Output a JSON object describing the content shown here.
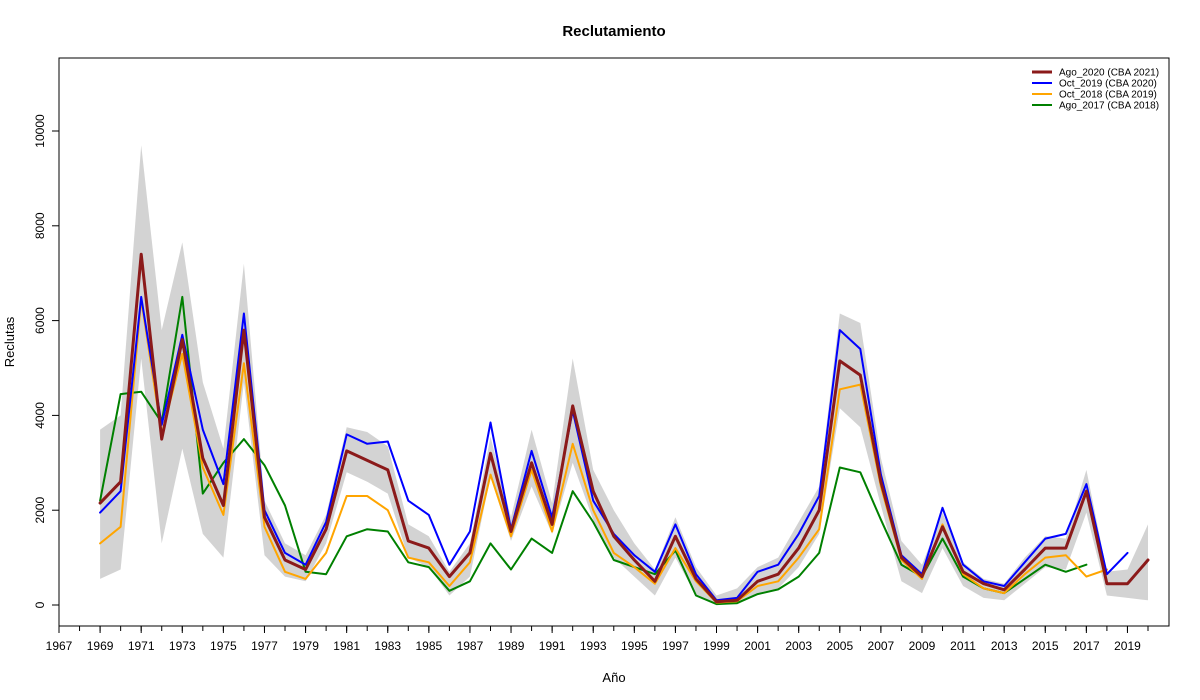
{
  "chart_data": {
    "type": "line",
    "title": "Reclutamiento",
    "xlabel": "Año",
    "ylabel": "Reclutas",
    "xlim": [
      1967,
      2020
    ],
    "ylim": [
      0,
      11000
    ],
    "xticks": [
      1967,
      1969,
      1971,
      1973,
      1975,
      1977,
      1979,
      1981,
      1983,
      1985,
      1987,
      1989,
      1991,
      1993,
      1995,
      1997,
      1999,
      2001,
      2003,
      2005,
      2007,
      2009,
      2011,
      2013,
      2015,
      2017,
      2019
    ],
    "yticks": [
      0,
      2000,
      4000,
      6000,
      8000,
      10000
    ],
    "legend_position": "top-right",
    "band": {
      "color": "#d3d3d3",
      "x": [
        1969,
        1970,
        1971,
        1972,
        1973,
        1974,
        1975,
        1976,
        1977,
        1978,
        1979,
        1980,
        1981,
        1982,
        1983,
        1984,
        1985,
        1986,
        1987,
        1988,
        1989,
        1990,
        1991,
        1992,
        1993,
        1994,
        1995,
        1996,
        1997,
        1998,
        1999,
        2000,
        2001,
        2002,
        2003,
        2004,
        2005,
        2006,
        2007,
        2008,
        2009,
        2010,
        2011,
        2012,
        2013,
        2014,
        2015,
        2016,
        2017,
        2018,
        2019,
        2020
      ],
      "upper": [
        3700,
        4000,
        9700,
        5800,
        7650,
        4700,
        3300,
        7200,
        2200,
        1300,
        1050,
        1900,
        3750,
        3650,
        3350,
        1700,
        1450,
        700,
        1300,
        3550,
        1850,
        3700,
        2150,
        5200,
        2850,
        2000,
        1300,
        750,
        1850,
        800,
        200,
        350,
        800,
        1000,
        1750,
        2500,
        6150,
        5950,
        3100,
        1350,
        850,
        1950,
        900,
        550,
        450,
        1000,
        1450,
        1400,
        2850,
        700,
        750,
        1700
      ],
      "lower": [
        550,
        750,
        5200,
        1300,
        3300,
        1500,
        1000,
        4700,
        1050,
        600,
        500,
        1300,
        2800,
        2600,
        2350,
        1000,
        800,
        200,
        600,
        2700,
        1350,
        2500,
        1500,
        3000,
        1800,
        1000,
        600,
        200,
        1000,
        200,
        10,
        10,
        250,
        350,
        800,
        1500,
        4150,
        3750,
        2100,
        500,
        250,
        1200,
        400,
        150,
        100,
        450,
        800,
        750,
        1950,
        200,
        150,
        100
      ]
    },
    "series": [
      {
        "name": "Ago_2020 (CBA 2021)",
        "color": "#8b1a1a",
        "width": 3,
        "x": [
          1969,
          1970,
          1971,
          1972,
          1973,
          1974,
          1975,
          1976,
          1977,
          1978,
          1979,
          1980,
          1981,
          1982,
          1983,
          1984,
          1985,
          1986,
          1987,
          1988,
          1989,
          1990,
          1991,
          1992,
          1993,
          1994,
          1995,
          1996,
          1997,
          1998,
          1999,
          2000,
          2001,
          2002,
          2003,
          2004,
          2005,
          2006,
          2007,
          2008,
          2009,
          2010,
          2011,
          2012,
          2013,
          2014,
          2015,
          2016,
          2017,
          2018,
          2019,
          2020
        ],
        "values": [
          2150,
          2600,
          7400,
          3500,
          5600,
          3100,
          2100,
          5800,
          1850,
          950,
          750,
          1600,
          3250,
          3050,
          2850,
          1350,
          1200,
          600,
          1100,
          3200,
          1550,
          3000,
          1700,
          4200,
          2400,
          1450,
          950,
          500,
          1450,
          550,
          70,
          100,
          500,
          650,
          1200,
          2000,
          5150,
          4850,
          2600,
          1000,
          600,
          1650,
          700,
          450,
          320,
          750,
          1200,
          1200,
          2400,
          450,
          450,
          950
        ]
      },
      {
        "name": "Oct_2019 (CBA 2020)",
        "color": "#0000ff",
        "width": 2,
        "x": [
          1969,
          1970,
          1971,
          1972,
          1973,
          1974,
          1975,
          1976,
          1977,
          1978,
          1979,
          1980,
          1981,
          1982,
          1983,
          1984,
          1985,
          1986,
          1987,
          1988,
          1989,
          1990,
          1991,
          1992,
          1993,
          1994,
          1995,
          1996,
          1997,
          1998,
          1999,
          2000,
          2001,
          2002,
          2003,
          2004,
          2005,
          2006,
          2007,
          2008,
          2009,
          2010,
          2011,
          2012,
          2013,
          2014,
          2015,
          2016,
          2017,
          2018,
          2019
        ],
        "values": [
          1950,
          2400,
          6500,
          3800,
          5700,
          3700,
          2550,
          6150,
          2000,
          1100,
          850,
          1750,
          3600,
          3400,
          3450,
          2200,
          1900,
          850,
          1550,
          3850,
          1600,
          3250,
          1850,
          4100,
          2200,
          1500,
          1050,
          700,
          1700,
          650,
          100,
          150,
          700,
          850,
          1500,
          2300,
          5800,
          5400,
          2750,
          1050,
          650,
          2050,
          850,
          500,
          400,
          900,
          1400,
          1500,
          2550,
          650,
          1100
        ]
      },
      {
        "name": "Oct_2018 (CBA 2019)",
        "color": "#ffa500",
        "width": 2,
        "x": [
          1969,
          1970,
          1971,
          1972,
          1973,
          1974,
          1975,
          1976,
          1977,
          1978,
          1979,
          1980,
          1981,
          1982,
          1983,
          1984,
          1985,
          1986,
          1987,
          1988,
          1989,
          1990,
          1991,
          1992,
          1993,
          1994,
          1995,
          1996,
          1997,
          1998,
          1999,
          2000,
          2001,
          2002,
          2003,
          2004,
          2005,
          2006,
          2007,
          2008,
          2009,
          2010,
          2011,
          2012,
          2013,
          2014,
          2015,
          2016,
          2017,
          2018
        ],
        "values": [
          1300,
          1650,
          6450,
          3600,
          5300,
          2900,
          1900,
          5100,
          1650,
          700,
          550,
          1100,
          2300,
          2300,
          2000,
          1000,
          900,
          400,
          900,
          2750,
          1450,
          2850,
          1550,
          3400,
          2000,
          1100,
          800,
          450,
          1200,
          500,
          50,
          80,
          400,
          500,
          1000,
          1600,
          4550,
          4650,
          2500,
          950,
          550,
          1700,
          650,
          350,
          250,
          650,
          1000,
          1050,
          600,
          750
        ]
      },
      {
        "name": "Ago_2017 (CBA 2018)",
        "color": "#008000",
        "width": 2,
        "x": [
          1969,
          1970,
          1971,
          1972,
          1973,
          1974,
          1975,
          1976,
          1977,
          1978,
          1979,
          1980,
          1981,
          1982,
          1983,
          1984,
          1985,
          1986,
          1987,
          1988,
          1989,
          1990,
          1991,
          1992,
          1993,
          1994,
          1995,
          1996,
          1997,
          1998,
          1999,
          2000,
          2001,
          2002,
          2003,
          2004,
          2005,
          2006,
          2007,
          2008,
          2009,
          2010,
          2011,
          2012,
          2013,
          2014,
          2015,
          2016,
          2017
        ],
        "values": [
          2200,
          4450,
          4500,
          3850,
          6500,
          2350,
          3000,
          3500,
          2950,
          2100,
          700,
          650,
          1450,
          1600,
          1550,
          900,
          800,
          300,
          500,
          1300,
          750,
          1400,
          1100,
          2400,
          1750,
          950,
          800,
          650,
          1150,
          200,
          20,
          40,
          230,
          330,
          600,
          1100,
          2900,
          2800,
          1800,
          850,
          600,
          1400,
          600,
          350,
          250,
          550,
          850,
          700,
          850
        ]
      }
    ]
  }
}
